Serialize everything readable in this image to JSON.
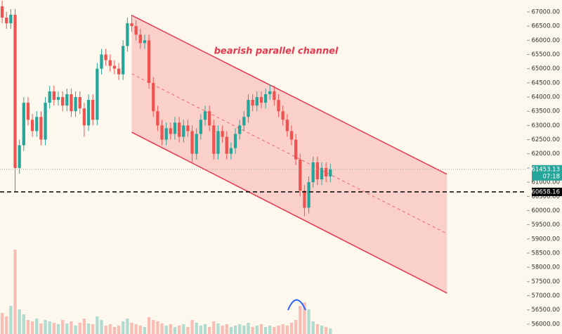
{
  "chart_data": {
    "type": "candlestick",
    "annotation": "bearish parallel channel",
    "up_color": "#26a69a",
    "down_color": "#ef5350",
    "xlim": [
      -0.5,
      121.5
    ],
    "ylim": [
      55650,
      67420
    ],
    "yticks": [
      {
        "value": 56000,
        "label": "56000.00"
      },
      {
        "value": 56500,
        "label": "56500.00"
      },
      {
        "value": 57000,
        "label": "57000.00"
      },
      {
        "value": 57500,
        "label": "57500.00"
      },
      {
        "value": 58000,
        "label": "58000.00"
      },
      {
        "value": 58500,
        "label": "58500.00"
      },
      {
        "value": 59000,
        "label": "59000.00"
      },
      {
        "value": 59500,
        "label": "59500.00"
      },
      {
        "value": 60000,
        "label": "60000.00"
      },
      {
        "value": 60500,
        "label": "60500.00"
      },
      {
        "value": 61000,
        "label": "61000.00"
      },
      {
        "value": 61500,
        "label": "61500.00"
      },
      {
        "value": 62000,
        "label": "62000.00"
      },
      {
        "value": 62500,
        "label": "62500.00"
      },
      {
        "value": 63000,
        "label": "63000.00"
      },
      {
        "value": 63500,
        "label": "63500.00"
      },
      {
        "value": 64000,
        "label": "64000.00"
      },
      {
        "value": 64500,
        "label": "64500.00"
      },
      {
        "value": 65000,
        "label": "65000.00"
      },
      {
        "value": 65500,
        "label": "65500.00"
      },
      {
        "value": 66000,
        "label": "66000.00"
      },
      {
        "value": 66500,
        "label": "66500.00"
      },
      {
        "value": 67000,
        "label": "67000.00"
      }
    ],
    "open": [
      67200,
      66800,
      66600,
      66900,
      61500,
      62300,
      63800,
      63200,
      62800,
      63300,
      62500,
      63800,
      64200,
      63900,
      64000,
      63700,
      64100,
      63500,
      64000,
      63600,
      63000,
      63900,
      63200,
      65000,
      65500,
      65300,
      65100,
      65000,
      64800,
      65800,
      66600,
      66500,
      66200,
      65900,
      66000,
      64500,
      63500,
      63000,
      62500,
      62900,
      62700,
      63100,
      62600,
      63000,
      62800,
      62000,
      62700,
      63200,
      63500,
      63000,
      62000,
      62800,
      62600,
      62000,
      62200,
      62700,
      63000,
      63300,
      63900,
      63700,
      64000,
      63800,
      64100,
      64200,
      63900,
      63500,
      63200,
      62800,
      62500,
      61800,
      60700,
      60100,
      61000,
      61700,
      61100,
      61500,
      61200
    ],
    "close": [
      66800,
      66600,
      66900,
      61500,
      62300,
      63800,
      63200,
      62800,
      63300,
      62500,
      63800,
      64200,
      63900,
      64000,
      63700,
      64100,
      63500,
      64000,
      63600,
      63000,
      63900,
      63200,
      65000,
      65500,
      65300,
      65100,
      65000,
      64800,
      65800,
      66600,
      66500,
      66200,
      65900,
      66000,
      64500,
      63500,
      63000,
      62500,
      62900,
      62700,
      63100,
      62600,
      63000,
      62800,
      62000,
      62700,
      63200,
      63500,
      63000,
      62000,
      62800,
      62600,
      62000,
      62200,
      62700,
      63000,
      63300,
      63900,
      63700,
      64000,
      63800,
      64100,
      64200,
      63900,
      63500,
      63200,
      62800,
      62500,
      61800,
      60700,
      60100,
      61000,
      61700,
      61100,
      61500,
      61200,
      61453.13
    ],
    "high": [
      67400,
      67000,
      67100,
      67100,
      62500,
      64000,
      64000,
      63400,
      63500,
      63500,
      64000,
      64400,
      64400,
      64200,
      64200,
      64300,
      64300,
      64200,
      64200,
      63800,
      64100,
      64100,
      65200,
      65700,
      65700,
      65500,
      65300,
      65200,
      66000,
      66800,
      66900,
      66700,
      66400,
      66200,
      66200,
      64700,
      63700,
      63200,
      63100,
      63100,
      63300,
      63300,
      63200,
      63200,
      63000,
      62900,
      63400,
      63700,
      63700,
      63200,
      63000,
      63000,
      62800,
      62400,
      62900,
      63200,
      63500,
      64100,
      64100,
      64200,
      64200,
      64300,
      64450,
      64400,
      64100,
      63700,
      63400,
      63000,
      62700,
      62000,
      60900,
      61200,
      61900,
      61900,
      61700,
      61700,
      61650
    ],
    "low": [
      66600,
      66400,
      66400,
      60658.16,
      61300,
      62100,
      63000,
      62600,
      62600,
      62300,
      62300,
      63600,
      63700,
      63700,
      63500,
      63500,
      63300,
      63300,
      63400,
      62600,
      62800,
      63000,
      63000,
      64800,
      65100,
      64900,
      64800,
      64600,
      64600,
      65600,
      66300,
      66000,
      65700,
      65700,
      64300,
      63300,
      62800,
      62300,
      62300,
      62500,
      62500,
      62400,
      62400,
      62600,
      61700,
      61800,
      62500,
      63000,
      62800,
      61800,
      61800,
      62400,
      61800,
      61800,
      62000,
      62500,
      62800,
      63100,
      63500,
      63500,
      63600,
      63600,
      63900,
      63700,
      63300,
      63000,
      62600,
      62300,
      61600,
      60500,
      59800,
      59900,
      60800,
      60900,
      60900,
      61000,
      61000
    ],
    "volume": [
      30,
      25,
      40,
      120,
      35,
      28,
      20,
      18,
      22,
      15,
      20,
      18,
      16,
      14,
      20,
      15,
      18,
      12,
      16,
      22,
      15,
      14,
      25,
      20,
      12,
      14,
      10,
      12,
      18,
      22,
      16,
      14,
      12,
      10,
      24,
      20,
      18,
      15,
      12,
      14,
      10,
      12,
      14,
      10,
      20,
      16,
      12,
      14,
      10,
      18,
      15,
      12,
      14,
      10,
      12,
      14,
      12,
      16,
      10,
      12,
      14,
      10,
      12,
      10,
      12,
      14,
      12,
      16,
      20,
      40,
      45,
      35,
      18,
      14,
      12,
      10,
      8
    ],
    "channel": {
      "x": [
        30,
        103
      ],
      "upper": [
        66880,
        61280
      ],
      "lower": [
        62760,
        57090
      ]
    },
    "price_labels": [
      {
        "value": 61453.13,
        "label": "61453.13",
        "sublabel": "07:18",
        "color": "#26a69a"
      },
      {
        "value": 60658.16,
        "label": "60658.16",
        "color": "#000000"
      }
    ]
  }
}
